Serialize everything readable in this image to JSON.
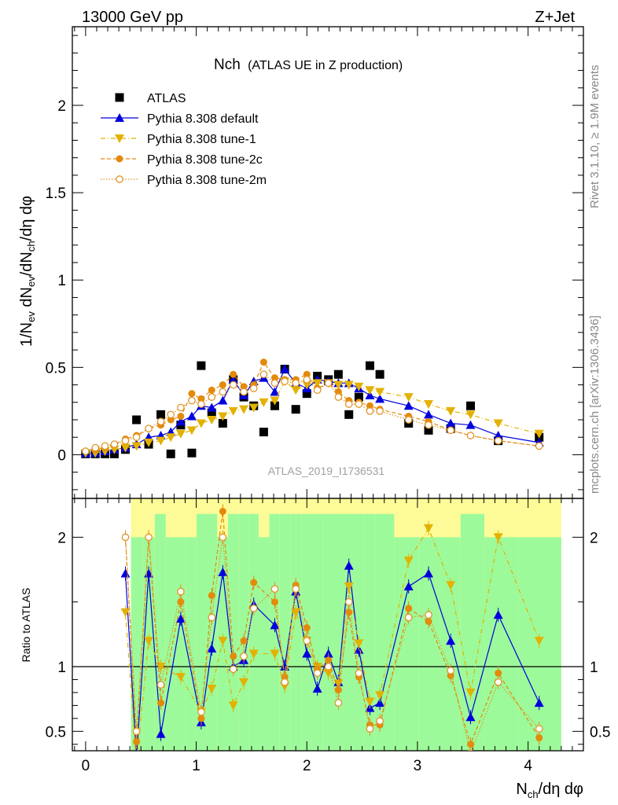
{
  "header": {
    "left": "13000 GeV pp",
    "right": "Z+Jet"
  },
  "plot_title": {
    "main": "Nch",
    "sub": "(ATLAS UE in Z production)"
  },
  "side_text": {
    "rivet": "Rivet 3.1.10, ≥ 1.9M events",
    "mcplots": "mcplots.cern.ch [arXiv:1306.3436]"
  },
  "watermark": "ATLAS_2019_I1736531",
  "colors": {
    "atlas": "#000000",
    "default": "#0000dd",
    "tune1": "#e3b100",
    "tune2c": "#e38a0a",
    "tune2m": "#e0952a",
    "band_green": "#9dfa9a",
    "band_yellow": "#fdfb97"
  },
  "chart_data": [
    {
      "type": "scatter",
      "panel": "main",
      "ylabel": "1/N_ev dN_ev/dN_ch/dη dφ",
      "xlim": [
        -0.12,
        4.5
      ],
      "ylim": [
        -0.25,
        2.45
      ],
      "y_ticks": [
        "0",
        "0.5",
        "1",
        "1.5",
        "2"
      ],
      "y_tick_values": [
        0,
        0.5,
        1,
        1.5,
        2
      ],
      "legend": {
        "position": "top-left",
        "entries": [
          {
            "key": "atlas",
            "label": "ATLAS",
            "marker": "square",
            "line": "none"
          },
          {
            "key": "default",
            "label": "Pythia 8.308 default",
            "marker": "triangle-up",
            "line": "solid"
          },
          {
            "key": "tune1",
            "label": "Pythia 8.308 tune-1",
            "marker": "triangle-down",
            "line": "dashdot"
          },
          {
            "key": "tune2c",
            "label": "Pythia 8.308 tune-2c",
            "marker": "circle",
            "line": "dashed"
          },
          {
            "key": "tune2m",
            "label": "Pythia 8.308 tune-2m",
            "marker": "circle-open",
            "line": "dotted"
          }
        ]
      },
      "x": [
        0.0,
        0.0875,
        0.175,
        0.26,
        0.36,
        0.46,
        0.57,
        0.68,
        0.77,
        0.86,
        0.96,
        1.045,
        1.14,
        1.24,
        1.335,
        1.43,
        1.52,
        1.61,
        1.71,
        1.8,
        1.9,
        2.0,
        2.095,
        2.195,
        2.285,
        2.38,
        2.47,
        2.57,
        2.66,
        2.92,
        3.1,
        3.3,
        3.48,
        3.73,
        4.1
      ],
      "series": [
        {
          "name": "ATLAS",
          "key": "atlas",
          "values": [
            0.005,
            0.005,
            0.005,
            0.005,
            0.03,
            0.2,
            0.06,
            0.23,
            0.005,
            0.17,
            0.01,
            0.51,
            0.24,
            0.18,
            0.43,
            0.33,
            0.28,
            0.13,
            0.28,
            0.49,
            0.26,
            0.35,
            0.45,
            0.43,
            0.46,
            0.23,
            0.33,
            0.51,
            0.46,
            0.18,
            0.14,
            0.15,
            0.28,
            0.08,
            0.1
          ]
        },
        {
          "name": "Pythia 8.308 default",
          "key": "default",
          "values": [
            0.008,
            0.01,
            0.02,
            0.03,
            0.04,
            0.06,
            0.1,
            0.11,
            0.13,
            0.19,
            0.22,
            0.28,
            0.27,
            0.31,
            0.43,
            0.34,
            0.42,
            0.44,
            0.36,
            0.49,
            0.41,
            0.38,
            0.43,
            0.42,
            0.41,
            0.41,
            0.38,
            0.34,
            0.32,
            0.28,
            0.23,
            0.18,
            0.17,
            0.11,
            0.07
          ]
        },
        {
          "name": "Pythia 8.308 tune-1",
          "key": "tune1",
          "values": [
            0.01,
            0.01,
            0.02,
            0.03,
            0.04,
            0.05,
            0.07,
            0.08,
            0.1,
            0.12,
            0.14,
            0.18,
            0.2,
            0.22,
            0.25,
            0.26,
            0.27,
            0.3,
            0.31,
            0.42,
            0.37,
            0.4,
            0.41,
            0.41,
            0.4,
            0.4,
            0.39,
            0.37,
            0.36,
            0.33,
            0.29,
            0.25,
            0.23,
            0.18,
            0.12
          ]
        },
        {
          "name": "Pythia 8.308 tune-2c",
          "key": "tune2c",
          "values": [
            0.02,
            0.03,
            0.04,
            0.06,
            0.09,
            0.11,
            0.15,
            0.17,
            0.2,
            0.22,
            0.35,
            0.32,
            0.37,
            0.4,
            0.46,
            0.39,
            0.4,
            0.53,
            0.44,
            0.43,
            0.43,
            0.46,
            0.38,
            0.41,
            0.36,
            0.31,
            0.3,
            0.28,
            0.26,
            0.22,
            0.19,
            0.14,
            0.11,
            0.08,
            0.05
          ]
        },
        {
          "name": "Pythia 8.308 tune-2m",
          "key": "tune2m",
          "values": [
            0.02,
            0.04,
            0.05,
            0.06,
            0.08,
            0.1,
            0.15,
            0.19,
            0.23,
            0.27,
            0.31,
            0.29,
            0.33,
            0.36,
            0.4,
            0.36,
            0.38,
            0.46,
            0.41,
            0.42,
            0.41,
            0.43,
            0.37,
            0.41,
            0.33,
            0.29,
            0.29,
            0.25,
            0.25,
            0.2,
            0.17,
            0.14,
            0.11,
            0.08,
            0.05
          ]
        }
      ]
    },
    {
      "type": "line",
      "panel": "ratio",
      "ylabel": "Ratio to ATLAS",
      "xlabel": "N_ch/dη dφ",
      "xlim": [
        -0.12,
        4.5
      ],
      "ylim": [
        0.35,
        2.3
      ],
      "y_ticks": [
        "0.5",
        "1",
        "2"
      ],
      "y_tick_values": [
        0.5,
        1,
        2
      ],
      "x_ticks": [
        "0",
        "1",
        "2",
        "3",
        "4"
      ],
      "x_tick_values": [
        0,
        1,
        2,
        3,
        4
      ],
      "reference_line": 1,
      "x": [
        0.36,
        0.46,
        0.57,
        0.68,
        0.86,
        1.045,
        1.14,
        1.24,
        1.335,
        1.43,
        1.52,
        1.71,
        1.8,
        1.9,
        2.0,
        2.095,
        2.195,
        2.285,
        2.38,
        2.47,
        2.57,
        2.66,
        2.92,
        3.1,
        3.3,
        3.48,
        3.73,
        4.1
      ],
      "series": [
        {
          "name": "Pythia 8.308 default",
          "key": "default",
          "values": [
            1.72,
            0.3,
            1.72,
            0.48,
            1.37,
            0.57,
            1.14,
            1.73,
            1.0,
            1.05,
            1.48,
            1.32,
            1.0,
            1.58,
            1.1,
            0.83,
            1.1,
            0.88,
            1.78,
            1.13,
            0.68,
            0.72,
            1.62,
            1.72,
            1.2,
            0.61,
            1.4,
            0.72
          ]
        },
        {
          "name": "Pythia 8.308 tune-1",
          "key": "tune1",
          "values": [
            1.42,
            0.25,
            1.2,
            1.0,
            0.92,
            0.65,
            0.83,
            1.2,
            0.7,
            0.88,
            1.1,
            1.1,
            0.85,
            1.42,
            1.2,
            1.0,
            0.95,
            0.87,
            1.62,
            1.18,
            0.73,
            0.78,
            1.82,
            2.07,
            1.63,
            0.8,
            2.0,
            1.2
          ]
        },
        {
          "name": "Pythia 8.308 tune-2c",
          "key": "tune2c",
          "values": [
            2.0,
            0.42,
            2.0,
            0.72,
            1.5,
            0.6,
            1.55,
            2.2,
            1.08,
            1.2,
            1.65,
            1.5,
            0.92,
            1.63,
            1.3,
            0.98,
            1.05,
            0.82,
            1.42,
            0.92,
            0.55,
            0.55,
            1.45,
            1.35,
            0.93,
            0.4,
            0.95,
            0.45
          ]
        },
        {
          "name": "Pythia 8.308 tune-2m",
          "key": "tune2m",
          "values": [
            2.0,
            0.5,
            2.0,
            0.86,
            1.58,
            0.65,
            1.38,
            2.0,
            0.98,
            1.08,
            1.45,
            1.6,
            0.88,
            1.6,
            1.2,
            0.95,
            1.0,
            0.72,
            1.5,
            0.95,
            0.52,
            0.58,
            1.38,
            1.4,
            0.97,
            0.33,
            0.88,
            0.52
          ]
        }
      ]
    }
  ]
}
